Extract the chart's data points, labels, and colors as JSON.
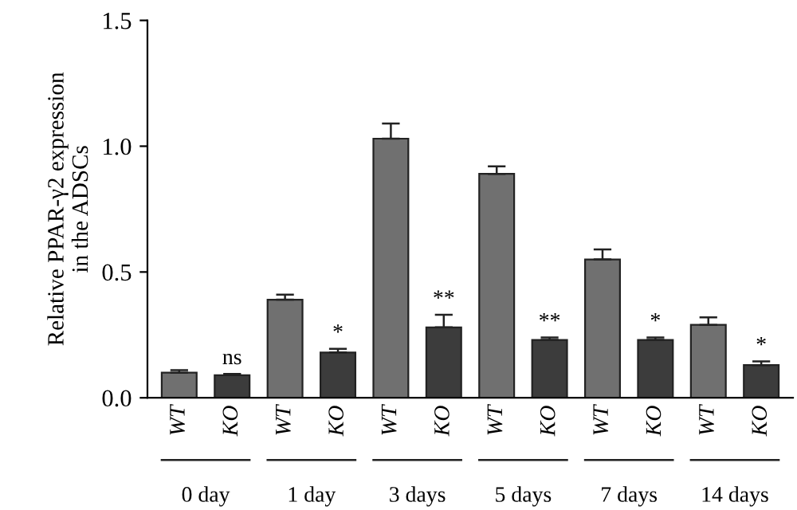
{
  "chart_data": {
    "type": "bar",
    "ylabel": "Relative PPAR-γ2 expression\nin the ADSCs",
    "categories": [
      "0 day",
      "1 day",
      "3 days",
      "5 days",
      "7 days",
      "14 days"
    ],
    "series": [
      {
        "name": "WT",
        "color": "#707070",
        "values": [
          0.1,
          0.39,
          1.03,
          0.89,
          0.55,
          0.29
        ],
        "errors": [
          0.01,
          0.02,
          0.06,
          0.03,
          0.04,
          0.03
        ]
      },
      {
        "name": "KO",
        "color": "#3c3c3c",
        "values": [
          0.09,
          0.18,
          0.28,
          0.23,
          0.23,
          0.13
        ],
        "errors": [
          0.005,
          0.015,
          0.05,
          0.01,
          0.01,
          0.015
        ]
      }
    ],
    "annotations": [
      "ns",
      "*",
      "**",
      "**",
      "*",
      "*"
    ],
    "ylim": [
      0,
      1.5
    ],
    "yticks": [
      {
        "value": 0,
        "label": "0.0"
      },
      0.5,
      {
        "value": 1,
        "label": "1.0"
      },
      1.5
    ],
    "grid": false,
    "legend": false
  }
}
